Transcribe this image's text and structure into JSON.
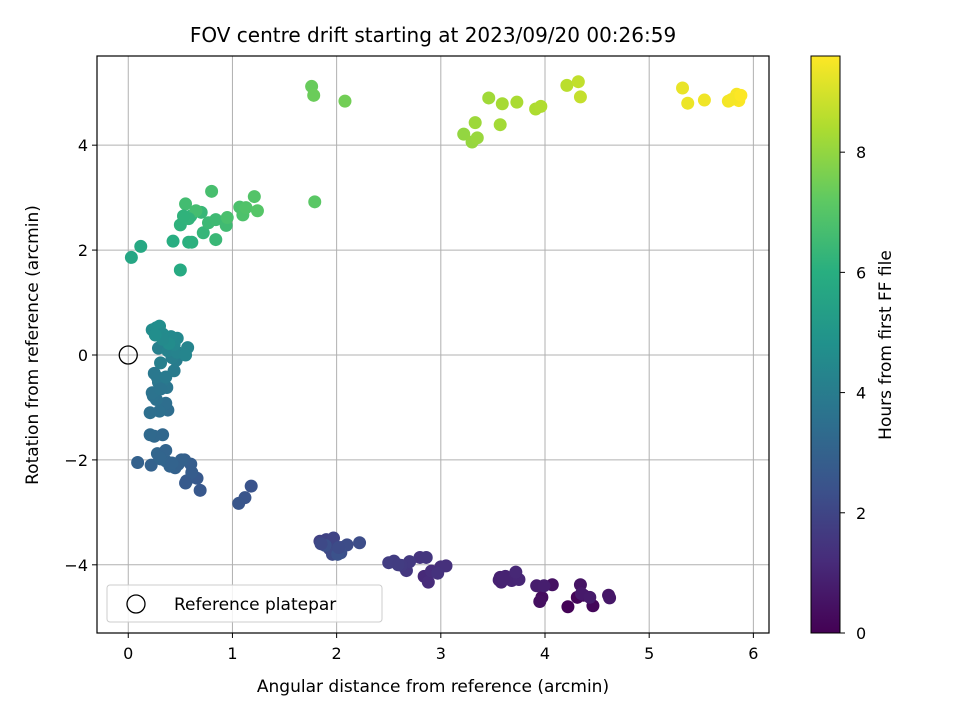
{
  "chart_data": {
    "type": "scatter",
    "title": "FOV centre drift starting at 2023/09/20 00:26:59",
    "xlabel": "Angular distance from reference (arcmin)",
    "ylabel": "Rotation from reference (arcmin)",
    "xlim": [
      -0.3,
      6.15
    ],
    "ylim": [
      -5.3,
      5.7
    ],
    "xticks": [
      0,
      1,
      2,
      3,
      4,
      5,
      6
    ],
    "yticks": [
      -4,
      -2,
      0,
      2,
      4
    ],
    "grid": true,
    "colormap": "viridis",
    "colorbar": {
      "label": "Hours from first FF file",
      "range": [
        0,
        9.6
      ],
      "ticks": [
        0,
        2,
        4,
        6,
        8
      ]
    },
    "legend": {
      "position": "lower-left",
      "entries": [
        "Reference platepar"
      ]
    },
    "reference_point": {
      "x": 0,
      "y": 0,
      "label": "Reference platepar"
    },
    "series": [
      {
        "x": [
          4.22,
          4.31,
          4.46,
          4.37,
          3.97,
          3.95,
          4.07,
          4.34,
          4.61,
          4.62,
          4.35,
          4.43,
          3.92,
          3.99,
          3.57,
          3.58,
          3.62,
          3.68,
          3.75,
          3.72,
          3.56,
          3.6,
          2.84,
          2.88,
          2.91,
          3.0,
          3.05,
          2.97,
          2.8,
          2.86,
          2.67,
          2.7,
          2.62,
          2.55,
          2.5,
          2.59,
          1.84,
          1.9,
          1.97,
          1.93,
          2.0,
          2.05,
          1.96,
          2.1,
          2.22,
          2.04,
          1.89,
          2.01,
          1.85,
          2.02
        ],
        "y": [
          -4.8,
          -4.62,
          -4.78,
          -4.58,
          -4.62,
          -4.7,
          -4.38,
          -4.38,
          -4.58,
          -4.63,
          -4.55,
          -4.62,
          -4.4,
          -4.4,
          -4.24,
          -4.33,
          -4.22,
          -4.3,
          -4.28,
          -4.14,
          -4.29,
          -4.27,
          -4.22,
          -4.33,
          -4.12,
          -4.04,
          -4.02,
          -4.16,
          -3.86,
          -3.86,
          -4.11,
          -3.94,
          -4.01,
          -3.93,
          -3.96,
          -4.0,
          -3.55,
          -3.52,
          -3.49,
          -3.69,
          -3.7,
          -3.67,
          -3.8,
          -3.62,
          -3.58,
          -3.77,
          -3.63,
          -3.8,
          -3.6,
          -3.67
        ],
        "hours": [
          0.05,
          0.12,
          0.18,
          0.25,
          0.3,
          0.38,
          0.45,
          0.52,
          0.58,
          0.62,
          0.68,
          0.72,
          0.78,
          0.82,
          0.88,
          0.92,
          0.96,
          1.0,
          1.04,
          1.08,
          0.9,
          0.94,
          1.15,
          1.2,
          1.25,
          1.3,
          1.35,
          1.4,
          1.45,
          1.5,
          1.55,
          1.6,
          1.65,
          1.7,
          1.75,
          1.72,
          1.85,
          1.9,
          1.95,
          2.0,
          2.05,
          2.1,
          2.15,
          2.2,
          2.25,
          2.3,
          2.35,
          2.4,
          2.12,
          2.18
        ]
      },
      {
        "x": [
          1.18,
          1.12,
          1.06,
          0.69,
          0.66,
          0.56,
          0.61,
          0.6,
          0.54,
          0.48,
          0.51,
          0.55,
          0.45,
          0.4,
          0.36,
          0.31,
          0.28,
          0.33,
          0.25,
          0.21,
          0.09,
          0.22,
          0.36,
          0.3,
          0.42,
          0.38,
          0.36,
          0.3,
          0.27,
          0.21,
          0.24,
          0.32,
          0.37,
          0.29,
          0.23,
          0.34,
          0.25,
          0.28,
          0.31,
          0.36,
          0.44,
          0.46,
          0.42,
          0.31,
          0.29,
          0.38,
          0.47,
          0.57,
          0.55,
          0.44,
          0.47,
          0.41,
          0.26,
          0.23,
          0.27,
          0.3,
          0.33,
          0.39,
          0.33,
          0.26
        ],
        "y": [
          -2.5,
          -2.72,
          -2.83,
          -2.58,
          -2.35,
          -2.4,
          -2.24,
          -2.08,
          -2.0,
          -2.08,
          -2.0,
          -2.44,
          -2.15,
          -2.12,
          -2.02,
          -1.98,
          -1.88,
          -1.52,
          -1.55,
          -1.52,
          -2.05,
          -2.1,
          -1.82,
          -1.95,
          -2.06,
          -1.05,
          -0.92,
          -1.07,
          -0.85,
          -1.1,
          -0.78,
          -0.6,
          -0.62,
          -0.52,
          -0.72,
          -0.48,
          -0.35,
          -0.43,
          -0.65,
          -0.42,
          -0.3,
          -0.1,
          -0.05,
          -0.15,
          0.13,
          0.08,
          0.05,
          0.14,
          0.0,
          0.2,
          0.32,
          0.35,
          0.42,
          0.48,
          0.52,
          0.55,
          0.4,
          0.22,
          0.3,
          0.38
        ],
        "hours": [
          2.45,
          2.5,
          2.55,
          2.62,
          2.68,
          2.72,
          2.78,
          2.82,
          2.88,
          2.92,
          2.96,
          2.7,
          2.98,
          3.02,
          3.06,
          3.1,
          3.14,
          3.2,
          3.22,
          3.25,
          2.95,
          3.0,
          3.08,
          3.12,
          3.04,
          3.4,
          3.45,
          3.5,
          3.55,
          3.48,
          3.6,
          3.65,
          3.7,
          3.75,
          3.62,
          3.8,
          3.85,
          3.82,
          3.68,
          3.9,
          3.95,
          4.0,
          4.05,
          4.1,
          4.15,
          4.2,
          4.25,
          4.3,
          4.35,
          4.4,
          4.45,
          4.5,
          4.55,
          4.6,
          4.65,
          4.7,
          4.58,
          4.62,
          4.52,
          4.68
        ]
      },
      {
        "x": [
          0.03,
          0.12,
          0.5,
          0.43,
          0.58,
          0.61,
          0.5,
          0.55,
          0.6,
          0.72,
          0.7,
          0.84,
          0.77,
          0.84,
          0.94,
          0.55,
          0.65,
          0.8,
          0.95,
          1.07,
          1.1,
          1.13,
          1.21,
          1.24,
          1.79,
          0.58,
          0.53,
          1.76
        ],
        "y": [
          1.86,
          2.07,
          1.62,
          2.17,
          2.15,
          2.15,
          2.48,
          2.62,
          2.65,
          2.33,
          2.72,
          2.2,
          2.52,
          2.58,
          2.47,
          2.88,
          2.75,
          3.12,
          2.62,
          2.82,
          2.67,
          2.81,
          3.02,
          2.75,
          2.92,
          2.6,
          2.65,
          5.12
        ],
        "hours": [
          5.65,
          5.75,
          5.85,
          5.95,
          6.05,
          6.1,
          6.15,
          6.2,
          6.25,
          6.3,
          6.35,
          6.4,
          6.45,
          6.5,
          6.55,
          6.6,
          6.65,
          6.7,
          6.75,
          6.8,
          6.85,
          6.9,
          6.95,
          7.0,
          7.1,
          6.22,
          6.18,
          7.35
        ]
      },
      {
        "x": [
          1.78,
          2.08,
          3.22,
          3.3,
          3.35,
          3.33,
          3.46,
          3.57,
          3.59,
          3.73,
          3.91,
          3.96,
          4.21,
          4.32,
          4.34,
          5.32,
          5.37,
          5.53,
          5.76,
          5.84,
          5.86,
          5.83,
          5.79,
          5.88
        ],
        "y": [
          4.95,
          4.84,
          4.21,
          4.06,
          4.14,
          4.43,
          4.9,
          4.39,
          4.79,
          4.82,
          4.69,
          4.74,
          5.14,
          5.21,
          4.92,
          5.09,
          4.8,
          4.86,
          4.84,
          4.97,
          4.85,
          4.9,
          4.87,
          4.95
        ],
        "hours": [
          7.4,
          7.5,
          8.0,
          8.05,
          8.1,
          8.15,
          8.2,
          8.25,
          8.3,
          8.35,
          8.4,
          8.45,
          8.6,
          8.7,
          8.75,
          9.3,
          9.35,
          9.4,
          9.45,
          9.5,
          9.55,
          9.52,
          9.48,
          9.58
        ]
      }
    ]
  }
}
